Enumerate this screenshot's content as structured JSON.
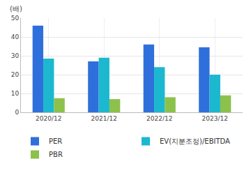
{
  "chart_data": {
    "type": "bar",
    "ylabel": "(배)",
    "categories": [
      "2020/12",
      "2021/12",
      "2022/12",
      "2023/12"
    ],
    "series": [
      {
        "name": "PER",
        "color": "#2f6fdb",
        "values": [
          46,
          27,
          36,
          34.5
        ]
      },
      {
        "name": "EV(지분조정)/EBITDA",
        "color": "#1bb8cf",
        "values": [
          28.5,
          29,
          24,
          20
        ]
      },
      {
        "name": "PBR",
        "color": "#8cc14c",
        "values": [
          7.5,
          7,
          8,
          9
        ]
      }
    ],
    "ylim": [
      0,
      50
    ],
    "yticks": [
      0,
      10,
      20,
      30,
      40,
      50
    ],
    "grid": true,
    "legend": "bottom"
  }
}
